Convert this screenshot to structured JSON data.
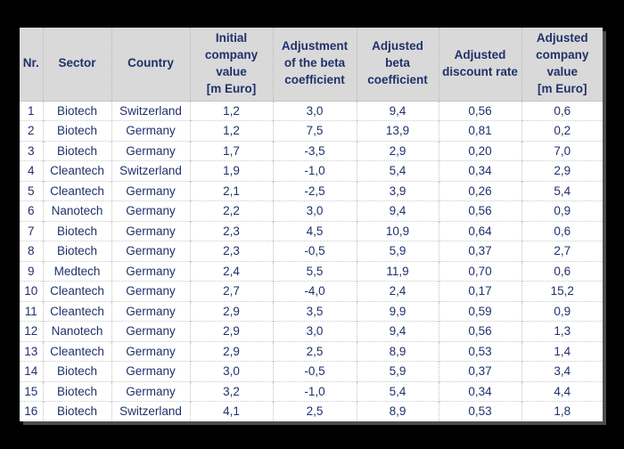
{
  "page": {
    "background_color": "#000000"
  },
  "table": {
    "colors": {
      "header_background": "#d9d9d9",
      "body_background": "#ffffff",
      "text": "#20316b",
      "gridline": "#c3c3c3",
      "shadow": "#8c8c8c"
    },
    "columns": [
      {
        "key": "nr",
        "label": "Nr."
      },
      {
        "key": "sector",
        "label": "Sector"
      },
      {
        "key": "country",
        "label": "Country"
      },
      {
        "key": "initial_company_value",
        "label": "Initial\ncompany\nvalue\n[m Euro]"
      },
      {
        "key": "beta_adjustment",
        "label": "Adjustment\nof the beta\ncoefficient"
      },
      {
        "key": "adjusted_beta",
        "label": "Adjusted\nbeta\ncoefficient"
      },
      {
        "key": "adjusted_discount_rate",
        "label": "Adjusted\ndiscount rate"
      },
      {
        "key": "adjusted_company_value",
        "label": "Adjusted\ncompany\nvalue\n[m Euro]"
      }
    ],
    "rows": [
      [
        "1",
        "Biotech",
        "Switzerland",
        "1,2",
        "3,0",
        "9,4",
        "0,56",
        "0,6"
      ],
      [
        "2",
        "Biotech",
        "Germany",
        "1,2",
        "7,5",
        "13,9",
        "0,81",
        "0,2"
      ],
      [
        "3",
        "Biotech",
        "Germany",
        "1,7",
        "-3,5",
        "2,9",
        "0,20",
        "7,0"
      ],
      [
        "4",
        "Cleantech",
        "Switzerland",
        "1,9",
        "-1,0",
        "5,4",
        "0,34",
        "2,9"
      ],
      [
        "5",
        "Cleantech",
        "Germany",
        "2,1",
        "-2,5",
        "3,9",
        "0,26",
        "5,4"
      ],
      [
        "6",
        "Nanotech",
        "Germany",
        "2,2",
        "3,0",
        "9,4",
        "0,56",
        "0,9"
      ],
      [
        "7",
        "Biotech",
        "Germany",
        "2,3",
        "4,5",
        "10,9",
        "0,64",
        "0,6"
      ],
      [
        "8",
        "Biotech",
        "Germany",
        "2,3",
        "-0,5",
        "5,9",
        "0,37",
        "2,7"
      ],
      [
        "9",
        "Medtech",
        "Germany",
        "2,4",
        "5,5",
        "11,9",
        "0,70",
        "0,6"
      ],
      [
        "10",
        "Cleantech",
        "Germany",
        "2,7",
        "-4,0",
        "2,4",
        "0,17",
        "15,2"
      ],
      [
        "11",
        "Cleantech",
        "Germany",
        "2,9",
        "3,5",
        "9,9",
        "0,59",
        "0,9"
      ],
      [
        "12",
        "Nanotech",
        "Germany",
        "2,9",
        "3,0",
        "9,4",
        "0,56",
        "1,3"
      ],
      [
        "13",
        "Cleantech",
        "Germany",
        "2,9",
        "2,5",
        "8,9",
        "0,53",
        "1,4"
      ],
      [
        "14",
        "Biotech",
        "Germany",
        "3,0",
        "-0,5",
        "5,9",
        "0,37",
        "3,4"
      ],
      [
        "15",
        "Biotech",
        "Germany",
        "3,2",
        "-1,0",
        "5,4",
        "0,34",
        "4,4"
      ],
      [
        "16",
        "Biotech",
        "Switzerland",
        "4,1",
        "2,5",
        "8,9",
        "0,53",
        "1,8"
      ]
    ]
  }
}
